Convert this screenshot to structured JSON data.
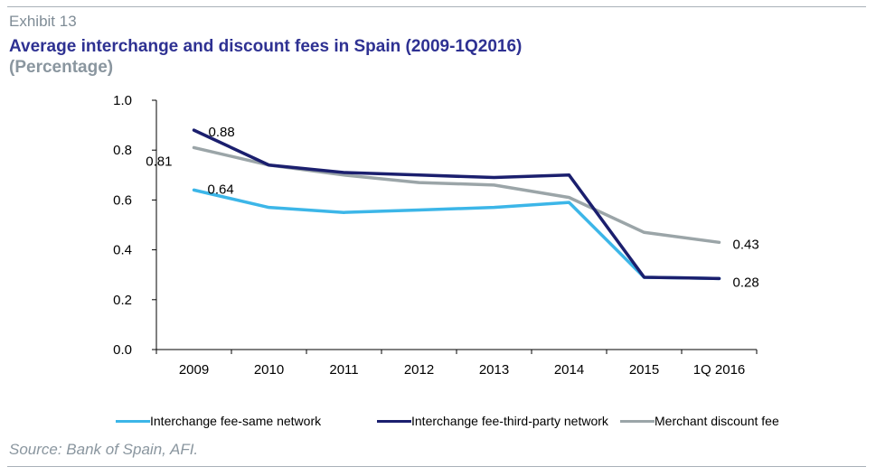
{
  "header": {
    "exhibit": "Exhibit 13",
    "title": "Average interchange and discount fees in Spain (2009-1Q2016)",
    "subtitle": "(Percentage)"
  },
  "footer": {
    "source": "Source: Bank of Spain, AFI."
  },
  "chart_data": {
    "type": "line",
    "title": "Average interchange and discount fees in Spain (2009-1Q2016)",
    "subtitle": "(Percentage)",
    "xlabel": "",
    "ylabel": "",
    "x": [
      "2009",
      "2010",
      "2011",
      "2012",
      "2013",
      "2014",
      "2015",
      "1Q 2016"
    ],
    "ylim": [
      0,
      1.0
    ],
    "yticks": [
      "0.0",
      "0.2",
      "0.4",
      "0.6",
      "0.8",
      "1.0"
    ],
    "grid": false,
    "legend": "bottom",
    "series": [
      {
        "name": "Interchange fee-same network",
        "color": "#3cb6e8",
        "values": [
          0.64,
          0.57,
          0.55,
          0.56,
          0.57,
          0.59,
          0.29,
          0.285
        ]
      },
      {
        "name": "Interchange fee-third-party network",
        "color": "#1b1f6e",
        "values": [
          0.88,
          0.74,
          0.71,
          0.7,
          0.69,
          0.7,
          0.29,
          0.285
        ]
      },
      {
        "name": "Merchant discount fee",
        "color": "#9ba5a8",
        "values": [
          0.81,
          0.74,
          0.7,
          0.67,
          0.66,
          0.61,
          0.47,
          0.43
        ]
      }
    ],
    "data_labels": [
      {
        "text": "0.88",
        "series": 1,
        "index": 0
      },
      {
        "text": "0.81",
        "series": 2,
        "index": 0
      },
      {
        "text": "0.64",
        "series": 0,
        "index": 0
      },
      {
        "text": "0.43",
        "series": 2,
        "index": 7
      },
      {
        "text": "0.28",
        "series": 1,
        "index": 7
      }
    ]
  }
}
